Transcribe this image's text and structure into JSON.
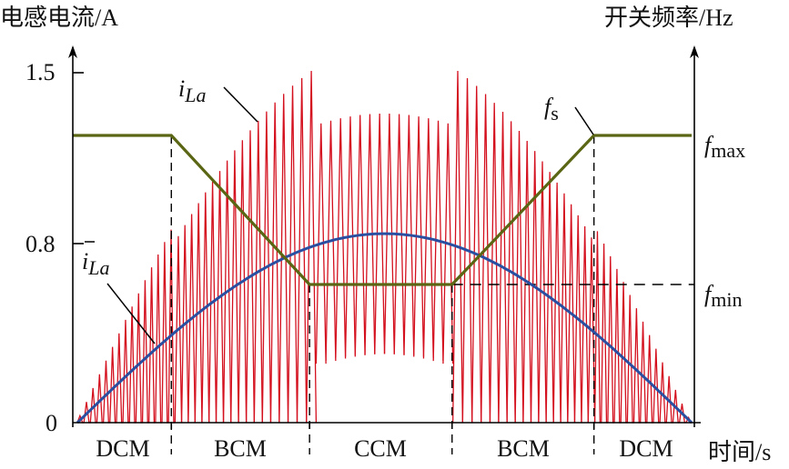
{
  "chart_data": {
    "type": "line",
    "left_axis_label": "电感电流/A",
    "right_axis_label": "开关频率/Hz",
    "x_axis_label": "时间/s",
    "y_ticks": [
      "0",
      "0.8",
      "1.5"
    ],
    "y_tick_values": [
      0,
      0.8,
      1.5
    ],
    "ylim": [
      0,
      1.5
    ],
    "xlim": [
      0,
      1
    ],
    "right_ticks": {
      "fmax": {
        "main": "f",
        "sub": "max"
      },
      "fmin": {
        "main": "f",
        "sub": "min"
      }
    },
    "modes": [
      "DCM",
      "BCM",
      "CCM",
      "BCM",
      "DCM"
    ],
    "mode_boundaries": [
      0.153,
      0.378,
      0.61,
      0.841
    ],
    "series": [
      {
        "name": "i_La",
        "label_main": "i",
        "label_sub": "La",
        "color": "#d4101e",
        "kind": "inductor current ripple",
        "ccm_ripple": 1.03
      },
      {
        "name": "avg_i_La",
        "label_main": "i",
        "label_sub": "La",
        "color": "#2a4ea0",
        "peak": 0.81,
        "shape": "half-sine"
      },
      {
        "name": "f_s",
        "label_main": "f",
        "label_sub": "s",
        "color": "#5b6614",
        "points": [
          [
            0,
            1
          ],
          [
            0.153,
            1
          ],
          [
            0.378,
            0
          ],
          [
            0.61,
            0
          ],
          [
            0.841,
            1
          ],
          [
            1,
            1
          ]
        ]
      }
    ],
    "grid": false
  }
}
